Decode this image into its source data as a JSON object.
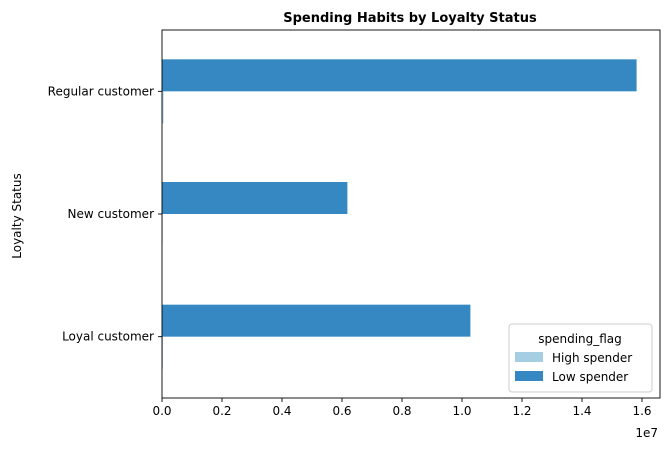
{
  "chart_data": {
    "type": "bar",
    "orientation": "horizontal",
    "title": "Spending Habits by Loyalty Status",
    "xlabel": "",
    "ylabel": "Loyalty Status",
    "x_offset_label": "1e7",
    "xlim": [
      0,
      16600000
    ],
    "x_ticks": [
      0,
      2000000,
      4000000,
      6000000,
      8000000,
      10000000,
      12000000,
      14000000,
      16000000
    ],
    "x_tick_labels": [
      "0.0",
      "0.2",
      "0.4",
      "0.6",
      "0.8",
      "1.0",
      "1.2",
      "1.4",
      "1.6"
    ],
    "categories": [
      "Loyal customer",
      "New customer",
      "Regular customer"
    ],
    "series": [
      {
        "name": "High spender",
        "color": "#a6cee3",
        "values": [
          30000,
          15000,
          50000
        ]
      },
      {
        "name": "Low spender",
        "color": "#3588c2",
        "values": [
          10280000,
          6180000,
          15820000
        ]
      }
    ],
    "legend": {
      "title": "spending_flag",
      "position": "lower-right"
    },
    "grid": false
  }
}
